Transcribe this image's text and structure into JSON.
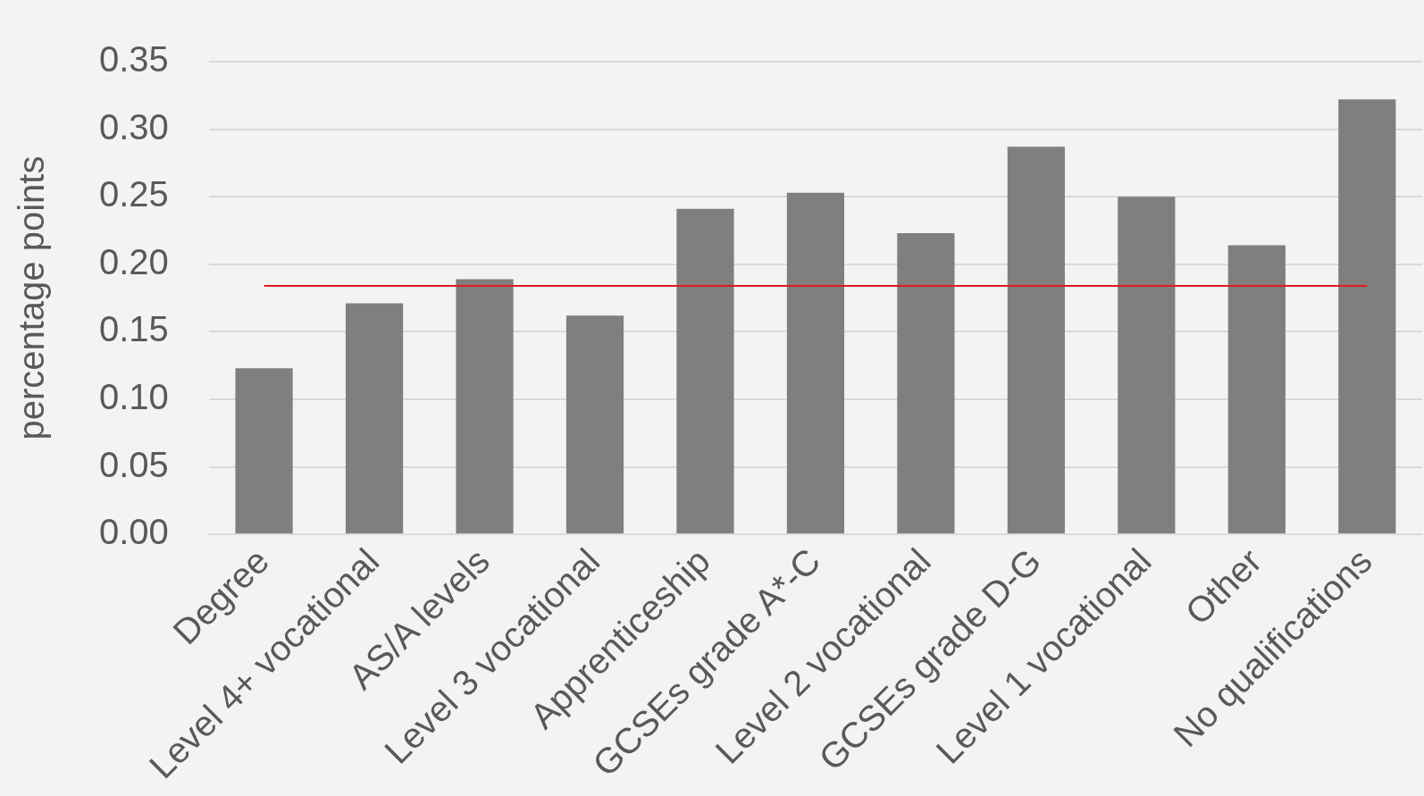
{
  "chart_data": {
    "type": "bar",
    "ylabel": "percentage points",
    "categories": [
      "Degree",
      "Level 4+ vocational",
      "AS/A levels",
      "Level 3 vocational",
      "Apprenticeship",
      "GCSEs grade A*-C",
      "Level 2 vocational",
      "GCSEs grade D-G",
      "Level 1 vocational",
      "Other",
      "No qualifications"
    ],
    "values": [
      0.123,
      0.171,
      0.189,
      0.162,
      0.241,
      0.253,
      0.223,
      0.287,
      0.25,
      0.214,
      0.322
    ],
    "color": "#7f7f7f",
    "ylim": [
      0,
      0.35
    ],
    "yticks": [
      {
        "value": 0,
        "label": "0.00"
      },
      {
        "value": 0.05,
        "label": "0.05"
      },
      {
        "value": 0.1,
        "label": "0.10"
      },
      {
        "value": 0.15,
        "label": "0.15"
      },
      {
        "value": 0.2,
        "label": "0.20"
      },
      {
        "value": 0.25,
        "label": "0.25"
      },
      {
        "value": 0.3,
        "label": "0.30"
      },
      {
        "value": 0.35,
        "label": "0.35"
      }
    ],
    "grid": "y",
    "legend": false,
    "ref_lines": [
      {
        "axis": "y",
        "value": 0.184,
        "color": "#e31a1c"
      }
    ]
  }
}
